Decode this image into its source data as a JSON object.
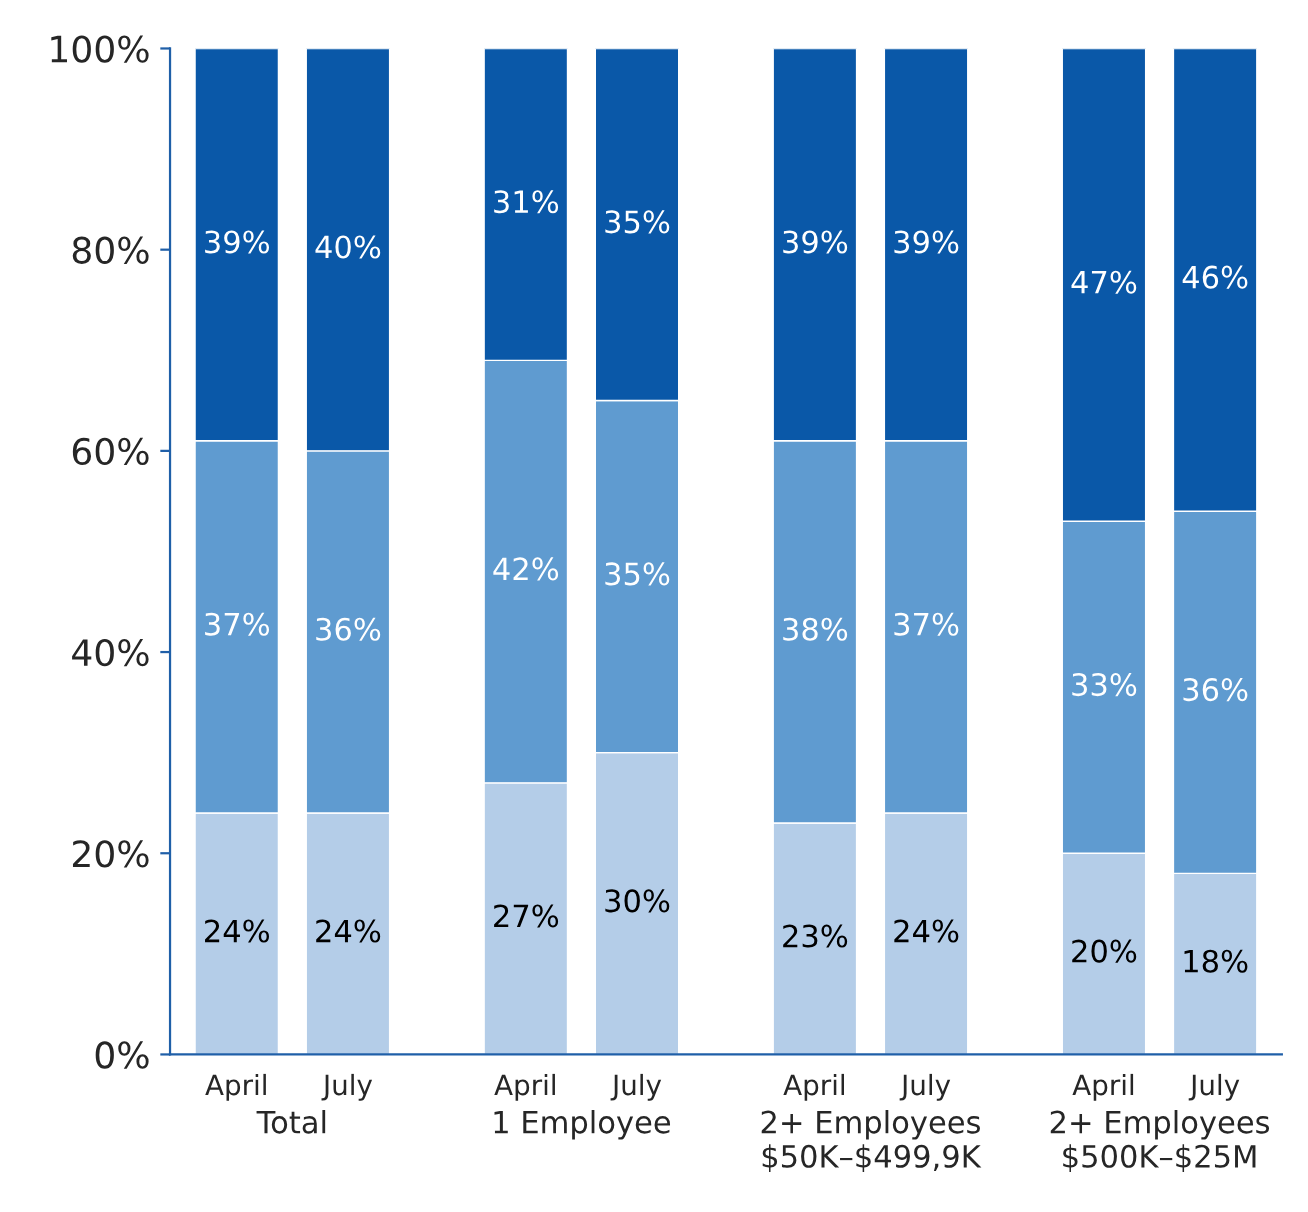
{
  "chart_data": {
    "type": "bar",
    "stacked": true,
    "categories": [
      "April",
      "July",
      "April",
      "July",
      "April",
      "July",
      "April",
      "July"
    ],
    "series": [
      {
        "color": "#b4cde8",
        "values": [
          24,
          24,
          27,
          30,
          23,
          24,
          20,
          18
        ],
        "value_labels": [
          "24%",
          "24%",
          "27%",
          "30%",
          "23%",
          "24%",
          "20%",
          "18%"
        ]
      },
      {
        "color": "#5f9bd0",
        "values": [
          37,
          36,
          42,
          35,
          38,
          37,
          33,
          36
        ],
        "value_labels": [
          "37%",
          "36%",
          "42%",
          "35%",
          "38%",
          "37%",
          "33%",
          "36%"
        ]
      },
      {
        "color": "#0a58a8",
        "values": [
          39,
          40,
          31,
          35,
          39,
          39,
          47,
          46
        ],
        "value_labels": [
          "39%",
          "40%",
          "31%",
          "35%",
          "39%",
          "39%",
          "47%",
          "46%"
        ]
      }
    ],
    "annotations": [
      "Total",
      "1 Employee",
      "2+ Employees\n$50K–$499,9K",
      "2+ Employees\n$500K–$25M"
    ],
    "ylim": [
      0,
      100
    ],
    "yticks": [
      {
        "value": 0,
        "label": "0%"
      },
      {
        "value": 20,
        "label": "20%"
      },
      {
        "value": 40,
        "label": "40%"
      },
      {
        "value": 60,
        "label": "60%"
      },
      {
        "value": 80,
        "label": "80%"
      },
      {
        "value": 100,
        "label": "100%"
      }
    ],
    "grid": false,
    "legend": false
  }
}
